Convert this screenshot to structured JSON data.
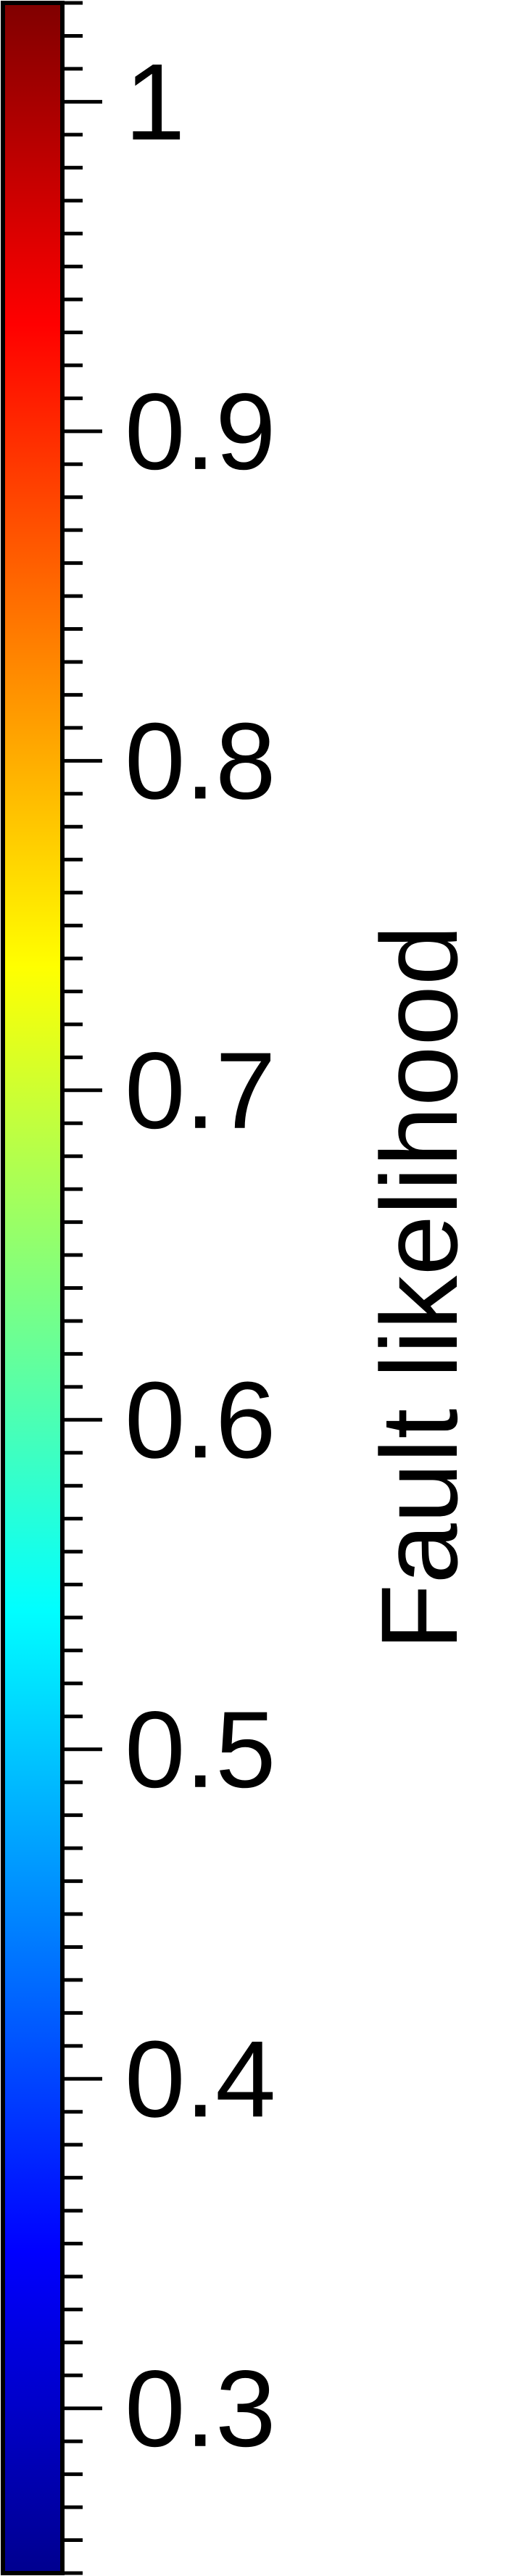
{
  "chart_data": {
    "type": "colorbar",
    "orientation": "vertical",
    "colormap": "jet",
    "label": "Fault likelihood",
    "range": [
      0.25,
      1.03
    ],
    "major_ticks": [
      1,
      0.9,
      0.8,
      0.7,
      0.6,
      0.5,
      0.4,
      0.3
    ],
    "tick_labels": [
      "1",
      "0.9",
      "0.8",
      "0.7",
      "0.6",
      "0.5",
      "0.4",
      "0.3"
    ],
    "minor_tick_step": 0.01,
    "colors": {
      "low": "#00008f",
      "high": "#800000"
    }
  }
}
